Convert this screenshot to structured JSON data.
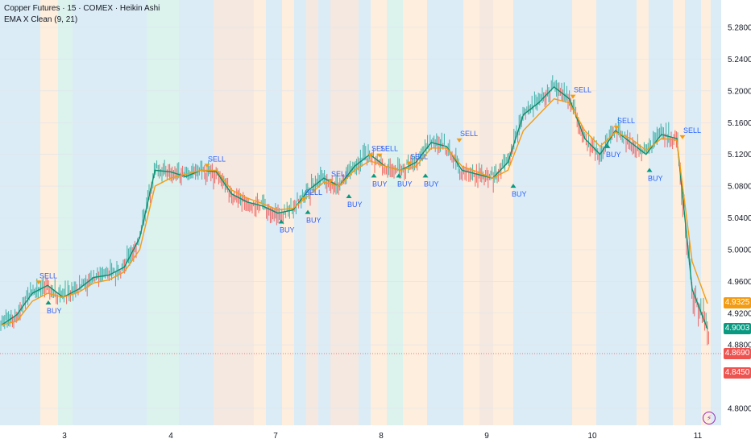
{
  "legend": {
    "title": "Copper Futures · 15 · COMEX · Heikin Ashi",
    "indicator": "EMA X Clean (9, 21)"
  },
  "colors": {
    "up": "#26a69a",
    "down": "#ef5350",
    "ema_fast": "#0a8f6e",
    "ema_slow": "#f39c12",
    "signal_text": "#2962ff",
    "bg_blue": "#d5e9f4",
    "bg_orange": "#fdebd8",
    "bg_green": "#d6f0ea",
    "bg_grey": "#f2e4dc"
  },
  "price_axis": {
    "ticks": [
      "5.2800",
      "5.2400",
      "5.2000",
      "5.1600",
      "5.1200",
      "5.0800",
      "5.0400",
      "5.0000",
      "4.9600",
      "4.9200",
      "4.8800",
      "4.8000"
    ],
    "tick_values": [
      5.28,
      5.24,
      5.2,
      5.16,
      5.12,
      5.08,
      5.04,
      5.0,
      4.96,
      4.92,
      4.88,
      4.8
    ],
    "range": [
      4.795,
      5.29
    ]
  },
  "time_axis": {
    "labels": [
      "3",
      "4",
      "7",
      "8",
      "9",
      "10",
      "11"
    ]
  },
  "price_tags": [
    {
      "label": "4.9325",
      "value": 4.9325,
      "color": "#f39c12"
    },
    {
      "label": "4.9003",
      "value": 4.9003,
      "color": "#089981"
    },
    {
      "label": "4.8690",
      "value": 4.869,
      "color": "#ef5350"
    },
    {
      "label": "4.8450",
      "value": 4.845,
      "color": "#ef5350"
    }
  ],
  "last_price_line": 4.869,
  "chart_data": {
    "type": "line",
    "x_labels": [
      "3",
      "4",
      "7",
      "8",
      "9",
      "10",
      "11"
    ],
    "series": [
      {
        "name": "EMA 9",
        "values": [
          4.905,
          4.918,
          4.945,
          4.955,
          4.94,
          4.95,
          4.965,
          4.968,
          4.978,
          5.015,
          5.1,
          5.098,
          5.092,
          5.1,
          5.098,
          5.07,
          5.06,
          5.055,
          5.046,
          5.05,
          5.075,
          5.09,
          5.08,
          5.105,
          5.12,
          5.105,
          5.1,
          5.11,
          5.135,
          5.13,
          5.1,
          5.095,
          5.09,
          5.11,
          5.17,
          5.185,
          5.205,
          5.19,
          5.14,
          5.12,
          5.15,
          5.135,
          5.12,
          5.145,
          5.14,
          4.95,
          4.9
        ]
      },
      {
        "name": "EMA 21",
        "values": [
          4.905,
          4.91,
          4.935,
          4.945,
          4.94,
          4.946,
          4.958,
          4.962,
          4.972,
          5.0,
          5.08,
          5.09,
          5.095,
          5.1,
          5.1,
          5.075,
          5.065,
          5.058,
          5.05,
          5.052,
          5.068,
          5.085,
          5.08,
          5.1,
          5.112,
          5.105,
          5.1,
          5.105,
          5.128,
          5.128,
          5.105,
          5.098,
          5.09,
          5.1,
          5.15,
          5.17,
          5.19,
          5.185,
          5.15,
          5.13,
          5.148,
          5.14,
          5.125,
          5.14,
          5.138,
          4.985,
          4.932
        ]
      }
    ]
  },
  "signals": [
    {
      "label": "SELL",
      "kind": "sell",
      "x": 48,
      "price": 4.955
    },
    {
      "label": "BUY",
      "kind": "buy",
      "x": 60,
      "price": 4.938
    },
    {
      "label": "SELL",
      "kind": "sell",
      "x": 257,
      "price": 5.102
    },
    {
      "label": "BUY",
      "kind": "buy",
      "x": 349,
      "price": 5.04
    },
    {
      "label": "SELL",
      "kind": "sell",
      "x": 377,
      "price": 5.06
    },
    {
      "label": "BUY",
      "kind": "buy",
      "x": 382,
      "price": 5.052
    },
    {
      "label": "SELL",
      "kind": "sell",
      "x": 410,
      "price": 5.083
    },
    {
      "label": "BUY",
      "kind": "buy",
      "x": 433,
      "price": 5.072
    },
    {
      "label": "SELL",
      "kind": "sell",
      "x": 460,
      "price": 5.115
    },
    {
      "label": "SELL",
      "kind": "sell",
      "x": 471,
      "price": 5.115
    },
    {
      "label": "BUY",
      "kind": "buy",
      "x": 464,
      "price": 5.098
    },
    {
      "label": "BUY",
      "kind": "buy",
      "x": 495,
      "price": 5.098
    },
    {
      "label": "SELL",
      "kind": "sell",
      "x": 508,
      "price": 5.105
    },
    {
      "label": "BUY",
      "kind": "buy",
      "x": 528,
      "price": 5.098
    },
    {
      "label": "SELL",
      "kind": "sell",
      "x": 570,
      "price": 5.134
    },
    {
      "label": "BUY",
      "kind": "buy",
      "x": 637,
      "price": 5.085
    },
    {
      "label": "SELL",
      "kind": "sell",
      "x": 711,
      "price": 5.189
    },
    {
      "label": "BUY",
      "kind": "buy",
      "x": 754,
      "price": 5.135
    },
    {
      "label": "SELL",
      "kind": "sell",
      "x": 765,
      "price": 5.15
    },
    {
      "label": "BUY",
      "kind": "buy",
      "x": 806,
      "price": 5.105
    },
    {
      "label": "SELL",
      "kind": "sell",
      "x": 847,
      "price": 5.138
    }
  ],
  "alert_icon": "lightning-icon"
}
